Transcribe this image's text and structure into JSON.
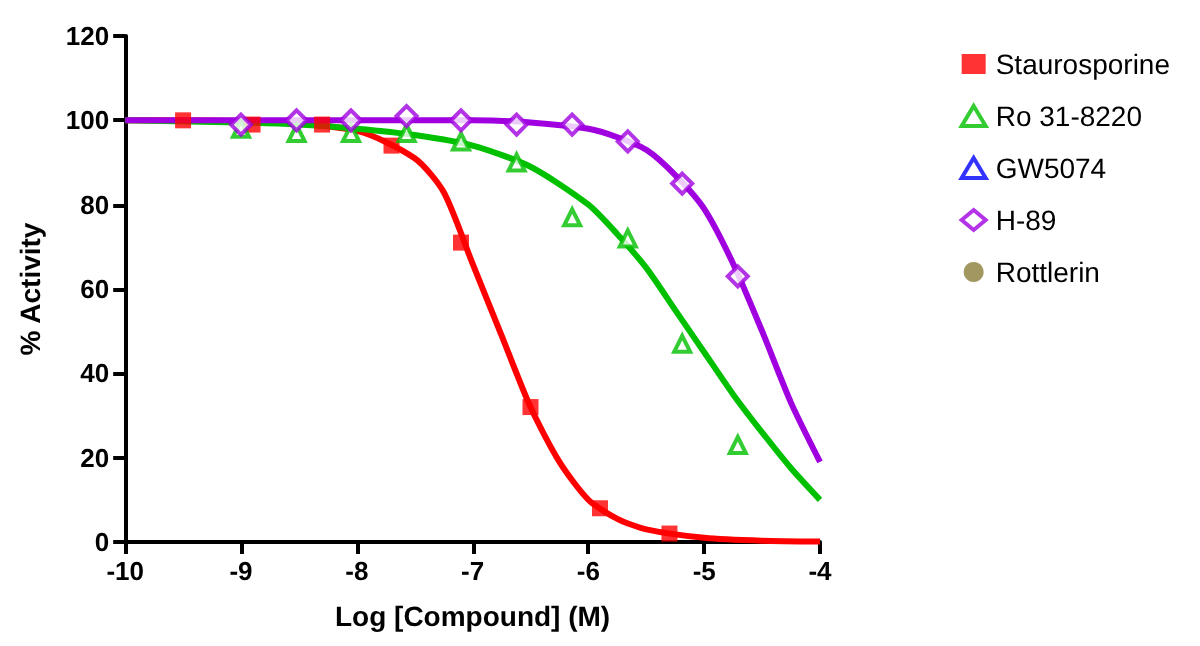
{
  "chart_data": {
    "type": "scatter",
    "xlabel": "Log [Compound] (M)",
    "ylabel": "% Activity",
    "xlim": [
      -10,
      -4
    ],
    "xticks": [
      -10,
      -9,
      -8,
      -7,
      -6,
      -5,
      -4
    ],
    "ylim": [
      0,
      120
    ],
    "yticks": [
      0,
      20,
      40,
      60,
      80,
      100,
      120
    ],
    "grid": false,
    "legend": "right",
    "series": [
      {
        "name": "Staurosporine",
        "color": "#ff0000",
        "marker": "square",
        "x": [
          -9.5,
          -8.9,
          -8.3,
          -7.7,
          -7.1,
          -6.5,
          -5.9,
          -5.3
        ],
        "values": [
          100,
          99,
          99,
          94,
          71,
          32,
          8,
          2
        ]
      },
      {
        "name": "Ro 31-8220",
        "color": "#00c000",
        "marker": "triangle",
        "x": [
          -9.0,
          -8.52,
          -8.05,
          -7.57,
          -7.1,
          -6.62,
          -6.14,
          -5.66,
          -5.19,
          -4.71
        ],
        "values": [
          98,
          97,
          97,
          97,
          95,
          90,
          77,
          72,
          47,
          23
        ]
      },
      {
        "name": "GW5074",
        "color": "#0000ff",
        "marker": "triangle"
      },
      {
        "name": "H-89",
        "color": "#a000e0",
        "marker": "diamond",
        "x": [
          -9.0,
          -8.52,
          -8.05,
          -7.57,
          -7.1,
          -6.62,
          -6.14,
          -5.66,
          -5.19,
          -4.71
        ],
        "values": [
          99,
          100,
          100,
          101,
          100,
          99,
          99,
          95,
          85,
          63
        ]
      },
      {
        "name": "Rottlerin",
        "color": "#8b7d3a",
        "marker": "circle"
      },
      {
        "type": "line",
        "color": "#ff0000",
        "marker": "none",
        "x": [
          -10,
          -9,
          -8,
          -7.5,
          -7.25,
          -7,
          -6.75,
          -6.5,
          -6.25,
          -6,
          -5.75,
          -5.5,
          -5,
          -4.5,
          -4
        ],
        "values": [
          100,
          99.8,
          97.5,
          91,
          83,
          66,
          49,
          32,
          19,
          10,
          5.5,
          3,
          1,
          0.3,
          0.1
        ]
      },
      {
        "type": "line",
        "color": "#00c000",
        "marker": "none",
        "x": [
          -10,
          -9,
          -8.5,
          -8,
          -7.5,
          -7,
          -6.5,
          -6,
          -5.75,
          -5.5,
          -5.25,
          -5,
          -4.75,
          -4.5,
          -4.25,
          -4
        ],
        "values": [
          100,
          99.5,
          99,
          98,
          96.5,
          94,
          89,
          80,
          73,
          65,
          55,
          45,
          35,
          26,
          17.5,
          10
        ]
      },
      {
        "type": "line",
        "color": "#a000e0",
        "marker": "none",
        "x": [
          -10,
          -7,
          -6.5,
          -6,
          -5.75,
          -5.5,
          -5.25,
          -5,
          -4.75,
          -4.5,
          -4.25,
          -4
        ],
        "values": [
          100,
          100,
          99.5,
          98,
          96,
          93,
          87,
          79,
          66,
          50,
          33,
          19
        ]
      }
    ]
  }
}
